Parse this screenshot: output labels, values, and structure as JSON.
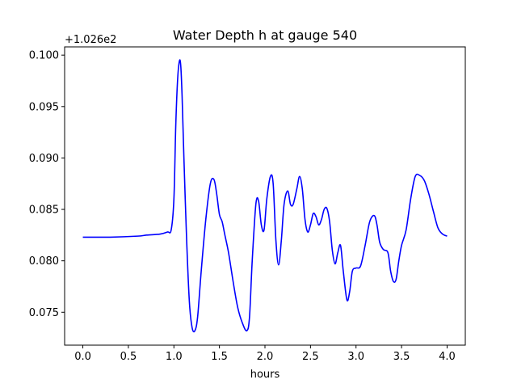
{
  "chart_data": {
    "type": "line",
    "title": "Water Depth h at gauge 540",
    "xlabel": "hours",
    "ylabel": "",
    "y_offset_label": "+1.026e2",
    "xlim": [
      -0.2,
      4.2
    ],
    "ylim": [
      0.0718,
      0.1008
    ],
    "x_ticks": [
      0.0,
      0.5,
      1.0,
      1.5,
      2.0,
      2.5,
      3.0,
      3.5,
      4.0
    ],
    "x_tick_labels": [
      "0.0",
      "0.5",
      "1.0",
      "1.5",
      "2.0",
      "2.5",
      "3.0",
      "3.5",
      "4.0"
    ],
    "y_ticks": [
      0.075,
      0.08,
      0.085,
      0.09,
      0.095,
      0.1
    ],
    "y_tick_labels": [
      "0.075",
      "0.080",
      "0.085",
      "0.090",
      "0.095",
      "0.100"
    ],
    "grid": false,
    "series": [
      {
        "color": "#0000ff",
        "x": [
          0.0,
          0.3,
          0.6,
          0.7,
          0.85,
          0.93,
          0.97,
          1.0,
          1.02,
          1.04,
          1.06,
          1.075,
          1.09,
          1.11,
          1.14,
          1.17,
          1.2,
          1.23,
          1.26,
          1.3,
          1.35,
          1.4,
          1.44,
          1.47,
          1.5,
          1.53,
          1.56,
          1.6,
          1.65,
          1.7,
          1.75,
          1.8,
          1.83,
          1.86,
          1.9,
          1.93,
          1.96,
          1.99,
          2.02,
          2.06,
          2.09,
          2.12,
          2.15,
          2.18,
          2.21,
          2.25,
          2.28,
          2.31,
          2.35,
          2.38,
          2.41,
          2.44,
          2.47,
          2.5,
          2.53,
          2.56,
          2.59,
          2.62,
          2.65,
          2.68,
          2.71,
          2.74,
          2.77,
          2.8,
          2.83,
          2.86,
          2.9,
          2.93,
          2.96,
          3.0,
          3.05,
          3.1,
          3.15,
          3.2,
          3.23,
          3.26,
          3.3,
          3.35,
          3.38,
          3.41,
          3.44,
          3.47,
          3.5,
          3.55,
          3.6,
          3.65,
          3.7,
          3.75,
          3.8,
          3.85,
          3.9,
          3.95,
          4.0
        ],
        "y": [
          0.0823,
          0.0823,
          0.0824,
          0.0825,
          0.0826,
          0.0828,
          0.083,
          0.086,
          0.093,
          0.0975,
          0.0994,
          0.099,
          0.096,
          0.09,
          0.082,
          0.076,
          0.0735,
          0.0732,
          0.0745,
          0.079,
          0.084,
          0.0875,
          0.0879,
          0.0865,
          0.0845,
          0.0838,
          0.0825,
          0.0808,
          0.078,
          0.0755,
          0.074,
          0.0732,
          0.0745,
          0.08,
          0.0855,
          0.0858,
          0.0835,
          0.083,
          0.086,
          0.0882,
          0.0875,
          0.082,
          0.0796,
          0.082,
          0.0855,
          0.0868,
          0.0855,
          0.0855,
          0.087,
          0.0882,
          0.087,
          0.084,
          0.0828,
          0.0835,
          0.0846,
          0.0843,
          0.0835,
          0.084,
          0.085,
          0.0851,
          0.0838,
          0.081,
          0.0797,
          0.0808,
          0.0815,
          0.079,
          0.0762,
          0.077,
          0.079,
          0.0793,
          0.0795,
          0.0815,
          0.0838,
          0.0844,
          0.0835,
          0.0818,
          0.0811,
          0.0808,
          0.079,
          0.078,
          0.0782,
          0.08,
          0.0815,
          0.083,
          0.086,
          0.0882,
          0.0883,
          0.0878,
          0.0865,
          0.0848,
          0.0832,
          0.0826,
          0.0824
        ]
      }
    ]
  }
}
